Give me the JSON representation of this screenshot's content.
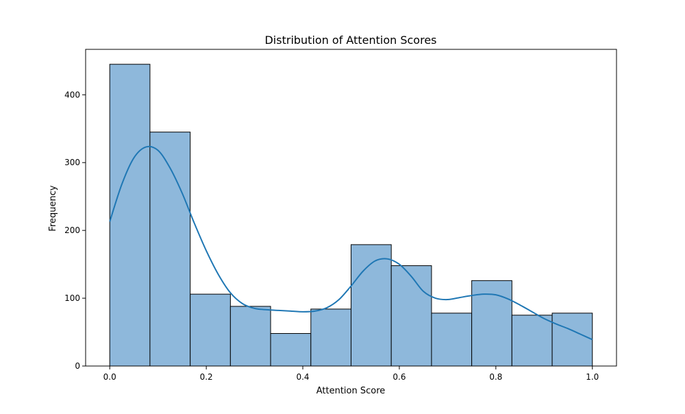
{
  "chart_data": {
    "type": "bar",
    "subtype": "histogram_with_kde",
    "title": "Distribution of Attention Scores",
    "xlabel": "Attention Score",
    "ylabel": "Frequency",
    "xlim": [
      -0.05,
      1.05
    ],
    "ylim": [
      0,
      467
    ],
    "xticks": [
      0.0,
      0.2,
      0.4,
      0.6,
      0.8,
      1.0
    ],
    "xtick_labels": [
      "0.0",
      "0.2",
      "0.4",
      "0.6",
      "0.8",
      "1.0"
    ],
    "yticks": [
      0,
      100,
      200,
      300,
      400
    ],
    "ytick_labels": [
      "0",
      "100",
      "200",
      "300",
      "400"
    ],
    "grid": false,
    "legend": "none",
    "bins": [
      {
        "x0": 0.0,
        "x1": 0.0833,
        "count": 445
      },
      {
        "x0": 0.0833,
        "x1": 0.1667,
        "count": 345
      },
      {
        "x0": 0.1667,
        "x1": 0.25,
        "count": 106
      },
      {
        "x0": 0.25,
        "x1": 0.3333,
        "count": 88
      },
      {
        "x0": 0.3333,
        "x1": 0.4167,
        "count": 48
      },
      {
        "x0": 0.4167,
        "x1": 0.5,
        "count": 84
      },
      {
        "x0": 0.5,
        "x1": 0.5833,
        "count": 179
      },
      {
        "x0": 0.5833,
        "x1": 0.6667,
        "count": 148
      },
      {
        "x0": 0.6667,
        "x1": 0.75,
        "count": 78
      },
      {
        "x0": 0.75,
        "x1": 0.8333,
        "count": 126
      },
      {
        "x0": 0.8333,
        "x1": 0.9167,
        "count": 75
      },
      {
        "x0": 0.9167,
        "x1": 1.0,
        "count": 78
      }
    ],
    "kde": {
      "x": [
        0.0,
        0.025,
        0.05,
        0.075,
        0.1,
        0.125,
        0.15,
        0.175,
        0.2,
        0.225,
        0.25,
        0.275,
        0.3,
        0.325,
        0.35,
        0.375,
        0.4,
        0.425,
        0.45,
        0.475,
        0.5,
        0.525,
        0.55,
        0.575,
        0.6,
        0.625,
        0.65,
        0.675,
        0.7,
        0.725,
        0.75,
        0.775,
        0.8,
        0.825,
        0.85,
        0.875,
        0.9,
        0.925,
        0.95,
        0.975,
        1.0
      ],
      "y": [
        213,
        268,
        307,
        323,
        318,
        292,
        255,
        211,
        170,
        135,
        108,
        92,
        85,
        83,
        82,
        81,
        80,
        81,
        86,
        98,
        118,
        140,
        155,
        158,
        150,
        132,
        110,
        100,
        98,
        101,
        104,
        106,
        105,
        99,
        90,
        80,
        70,
        62,
        55,
        47,
        39
      ]
    },
    "colors": {
      "bar_fill": "#8eb8db",
      "bar_edge": "#000000",
      "kde_line": "#1f77b4"
    }
  }
}
